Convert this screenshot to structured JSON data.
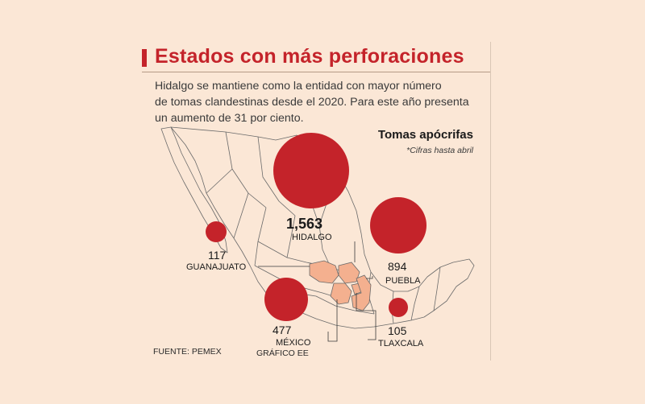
{
  "header": {
    "title": "Estados con más perforaciones",
    "intro_lines": [
      "Hidalgo se mantiene como la entidad con mayor número",
      "de tomas clandestinas desde el 2020. Para este año presenta",
      "un aumento de 31 por ciento."
    ]
  },
  "legend": {
    "title": "Tomas apócrifas",
    "note": "*Cifras hasta abril"
  },
  "colors": {
    "bubble": "#c4232a",
    "highlight_states": "#f4b08f",
    "background": "#fbe7d6",
    "map_outline": "#5b5b5b"
  },
  "states": [
    {
      "name": "HIDALGO",
      "value_label": "1,563",
      "value": 1563
    },
    {
      "name": "PUEBLA",
      "value_label": "894",
      "value": 894
    },
    {
      "name": "MÉXICO",
      "value_label": "477",
      "value": 477
    },
    {
      "name": "GUANAJUATO",
      "value_label": "117",
      "value": 117
    },
    {
      "name": "TLAXCALA",
      "value_label": "105",
      "value": 105
    }
  ],
  "footer": {
    "source": "FUENTE: PEMEX",
    "credit": "GRÁFICO EE"
  }
}
